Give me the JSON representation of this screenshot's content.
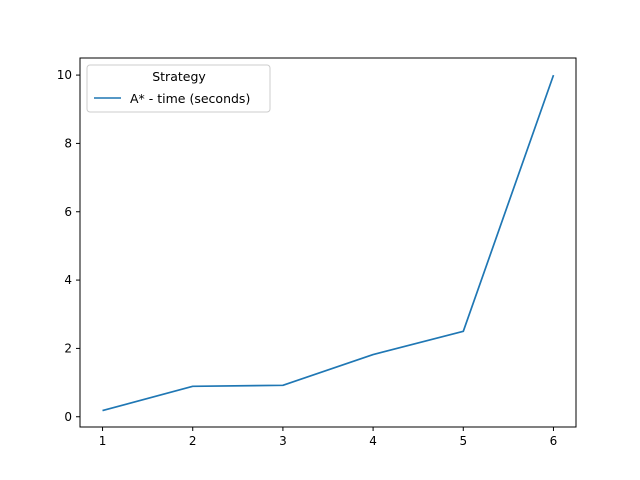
{
  "chart_data": {
    "type": "line",
    "title": "",
    "xlabel": "",
    "ylabel": "",
    "x": [
      1,
      2,
      3,
      4,
      5,
      6
    ],
    "series": [
      {
        "name": "A* - time (seconds)",
        "color": "#1f77b4",
        "values": [
          0.18,
          0.89,
          0.92,
          1.82,
          2.5,
          10.0
        ]
      }
    ],
    "xlim": [
      0.75,
      6.25
    ],
    "ylim": [
      -0.3,
      10.5
    ],
    "xticks": [
      1,
      2,
      3,
      4,
      5,
      6
    ],
    "yticks": [
      0,
      2,
      4,
      6,
      8,
      10
    ],
    "grid": false,
    "legend": {
      "title": "Strategy",
      "position": "top-left"
    }
  }
}
